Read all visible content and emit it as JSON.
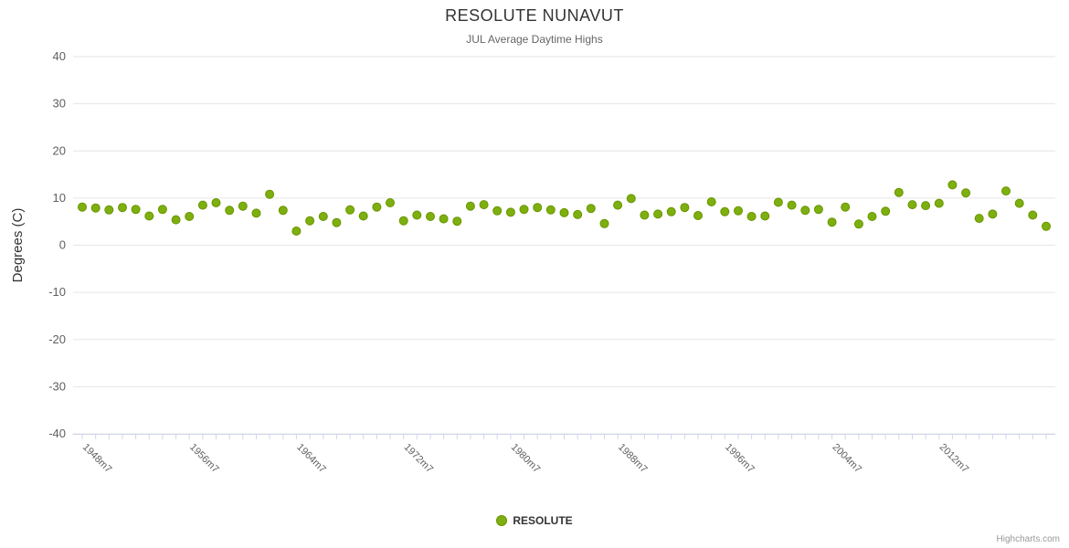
{
  "chart": {
    "title": "RESOLUTE NUNAVUT",
    "subtitle": "JUL Average Daytime Highs"
  },
  "legend": {
    "label": "RESOLUTE"
  },
  "credits": {
    "text": "Highcharts.com"
  },
  "chart_data": {
    "type": "scatter",
    "title": "RESOLUTE NUNAVUT",
    "subtitle": "JUL Average Daytime Highs",
    "xlabel": "",
    "ylabel": "Degrees (C)",
    "ylim": [
      -40,
      40
    ],
    "y_ticks": [
      -40,
      -30,
      -20,
      -10,
      0,
      10,
      20,
      30,
      40
    ],
    "grid": true,
    "legend_position": "bottom-center",
    "series_name": "RESOLUTE",
    "point_color": "#7db00e",
    "point_stroke": "#699400",
    "grid_color": "#e6e6e6",
    "axis_line_color": "#ccd6eb",
    "x_tick_labels": [
      "1948m7",
      "1956m7",
      "1964m7",
      "1972m7",
      "1980m7",
      "1988m7",
      "1996m7",
      "2004m7",
      "2012m7"
    ],
    "categories": [
      "1948m7",
      "1949m7",
      "1950m7",
      "1951m7",
      "1952m7",
      "1953m7",
      "1954m7",
      "1955m7",
      "1956m7",
      "1957m7",
      "1958m7",
      "1959m7",
      "1960m7",
      "1961m7",
      "1962m7",
      "1963m7",
      "1964m7",
      "1965m7",
      "1966m7",
      "1967m7",
      "1968m7",
      "1969m7",
      "1970m7",
      "1971m7",
      "1972m7",
      "1973m7",
      "1974m7",
      "1975m7",
      "1976m7",
      "1977m7",
      "1978m7",
      "1979m7",
      "1980m7",
      "1981m7",
      "1982m7",
      "1983m7",
      "1984m7",
      "1985m7",
      "1986m7",
      "1987m7",
      "1988m7",
      "1989m7",
      "1990m7",
      "1991m7",
      "1992m7",
      "1993m7",
      "1994m7",
      "1995m7",
      "1996m7",
      "1997m7",
      "1998m7",
      "1999m7",
      "2000m7",
      "2001m7",
      "2002m7",
      "2003m7",
      "2004m7",
      "2005m7",
      "2006m7",
      "2007m7",
      "2008m7",
      "2009m7",
      "2010m7",
      "2011m7",
      "2012m7",
      "2013m7",
      "2014m7",
      "2015m7",
      "2016m7",
      "2017m7",
      "2018m7",
      "2019m7",
      "2020m7"
    ],
    "values": [
      8.1,
      7.9,
      7.5,
      8.0,
      7.6,
      6.2,
      7.6,
      5.4,
      6.1,
      8.5,
      9.0,
      7.4,
      8.3,
      6.8,
      10.8,
      7.4,
      3.0,
      5.2,
      6.1,
      4.8,
      7.5,
      6.2,
      8.1,
      9.0,
      5.2,
      6.4,
      6.1,
      5.6,
      5.1,
      8.3,
      8.6,
      7.3,
      7.0,
      7.6,
      8.0,
      7.5,
      6.9,
      6.5,
      7.8,
      4.6,
      8.5,
      9.9,
      6.4,
      6.6,
      7.1,
      8.0,
      6.3,
      9.2,
      7.1,
      7.3,
      6.1,
      6.2,
      9.1,
      8.5,
      7.4,
      7.6,
      4.9,
      8.1,
      4.5,
      6.1,
      7.2,
      11.2,
      8.6,
      8.4,
      8.9,
      12.8,
      11.1,
      5.7,
      6.6,
      11.5,
      8.9,
      6.4,
      4.0
    ]
  }
}
